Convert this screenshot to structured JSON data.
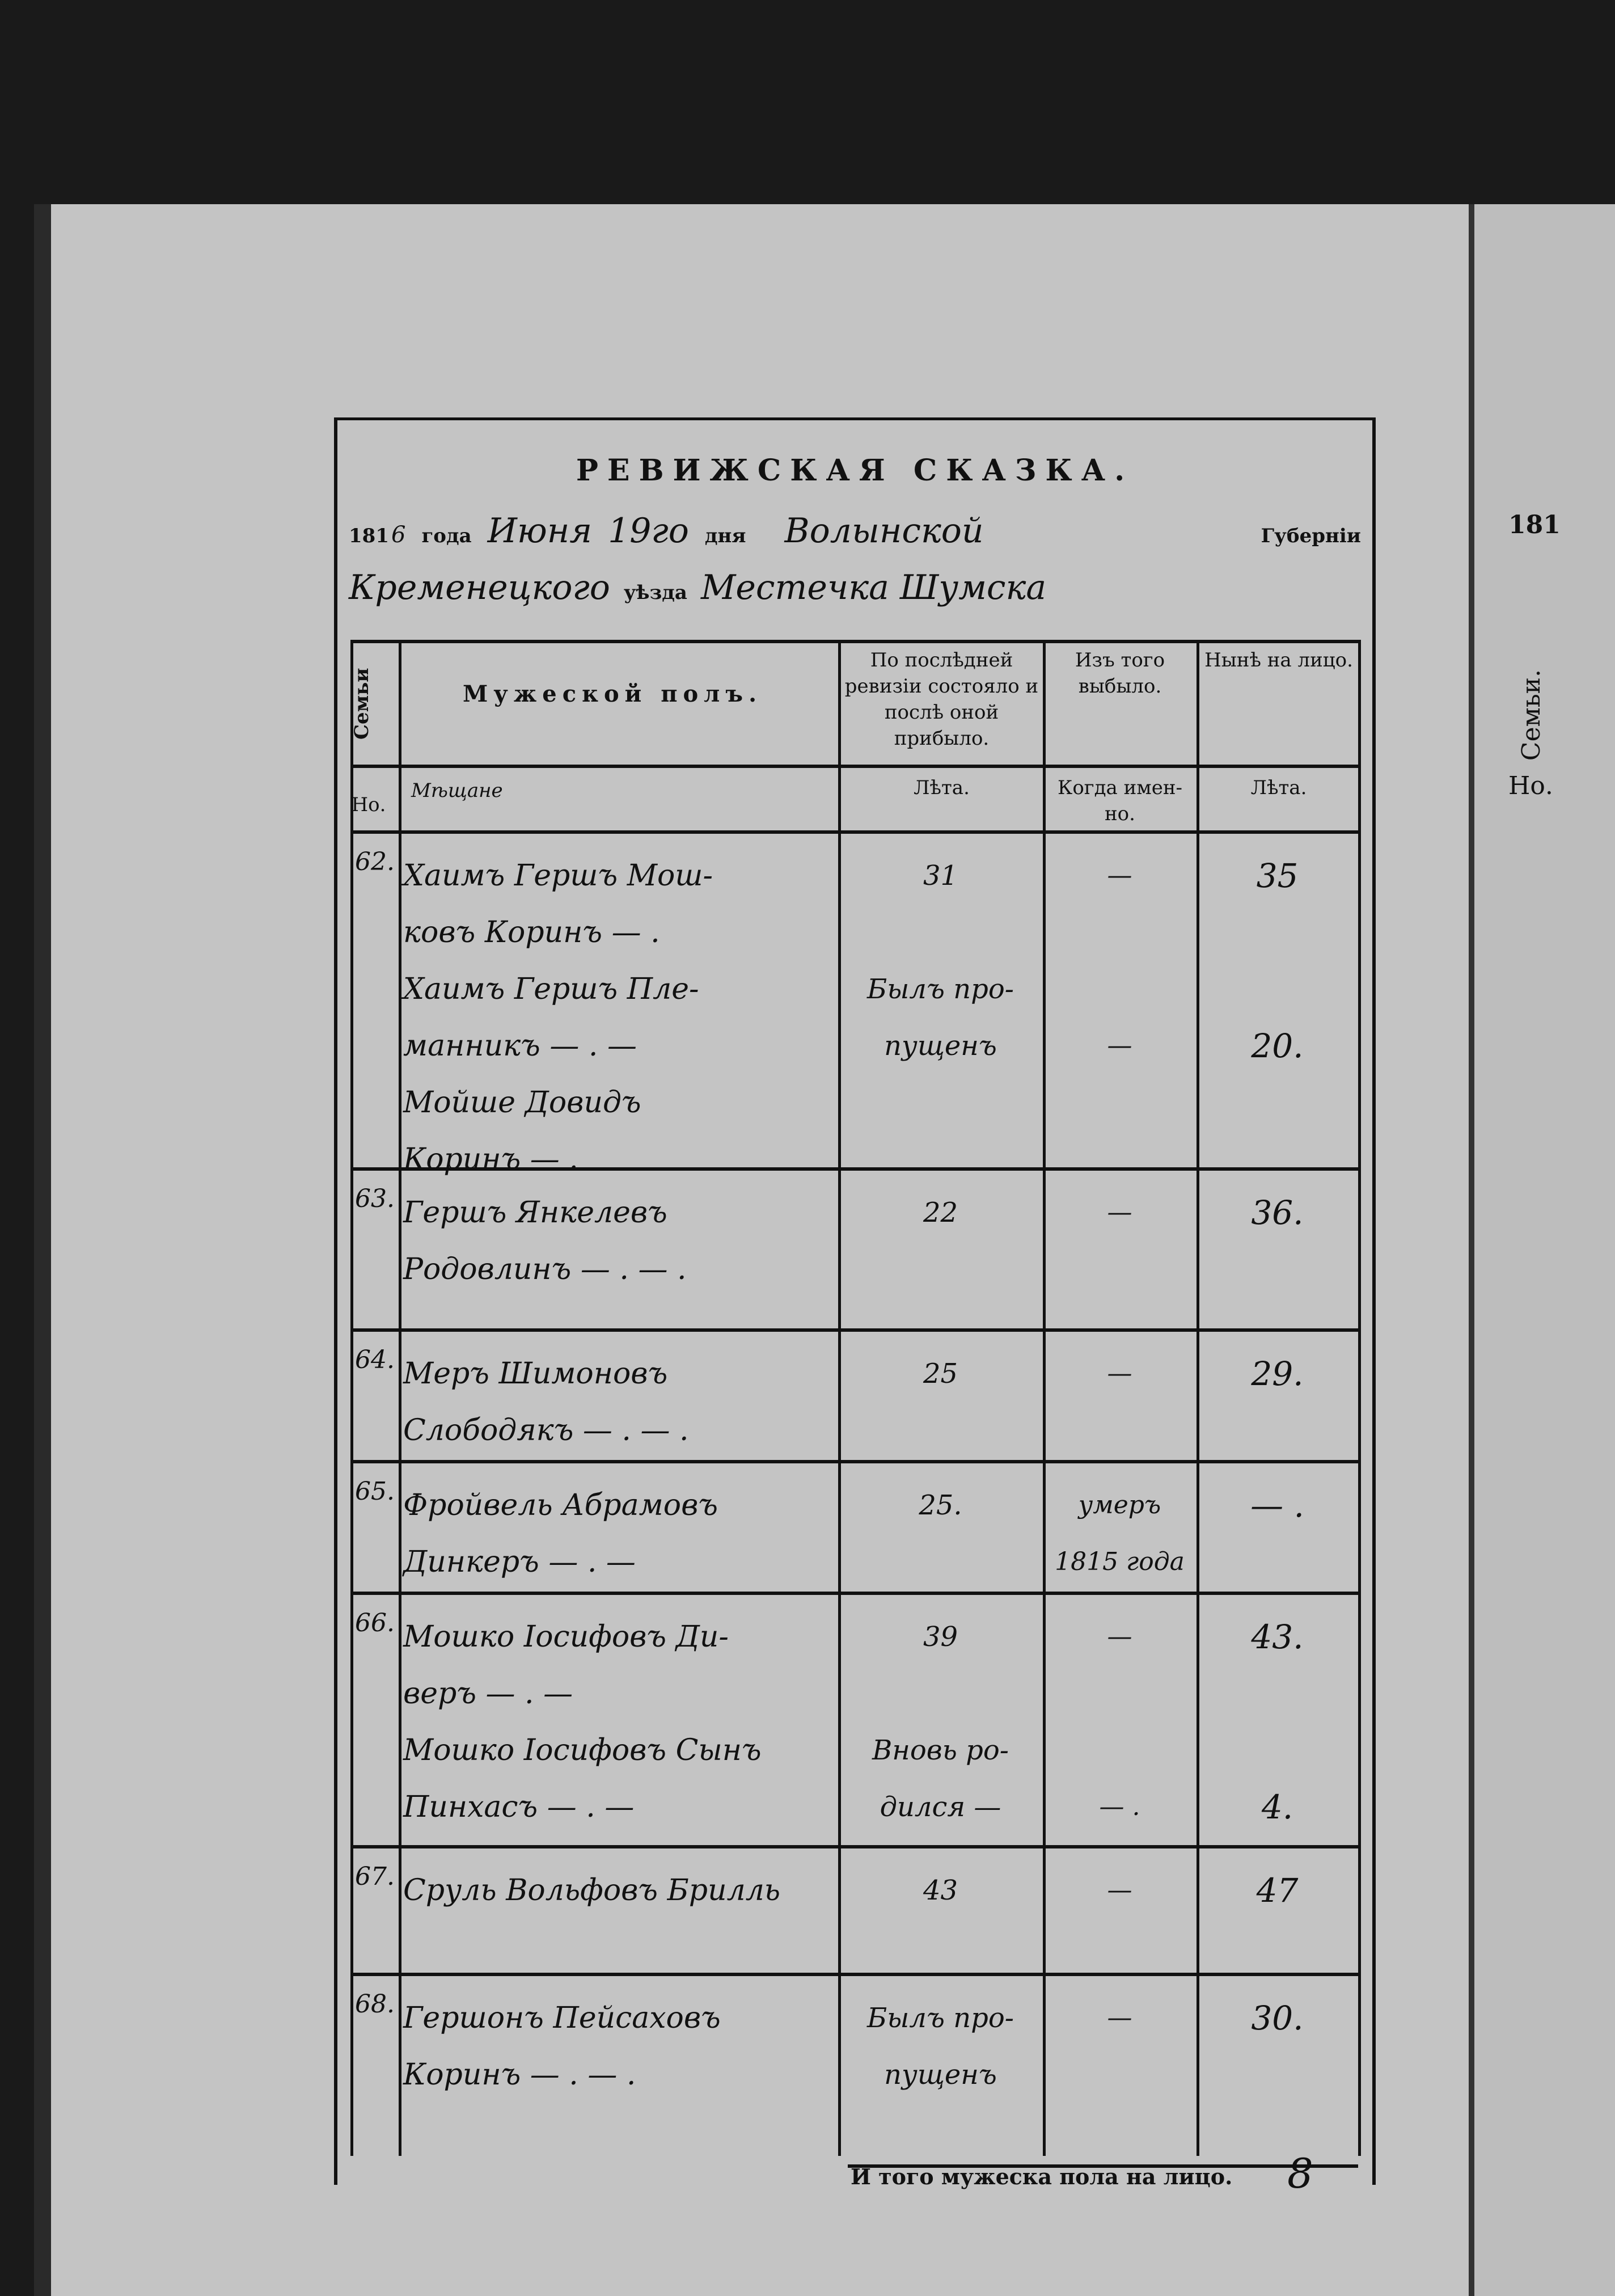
{
  "form": {
    "title": "РЕВИЖСКАЯ СКАЗКА.",
    "year_prefix": "181",
    "year_hand": "6",
    "year_label": "года",
    "month_hand": "Июня",
    "day_hand": "19го",
    "day_label": "дня",
    "province_hand": "Волынской",
    "province_label": "Губерніи",
    "district_hand": "Кременецкого",
    "district_label": "уѣзда",
    "town_hand": "Местечка Шумска"
  },
  "table": {
    "headers": {
      "family": "Семьи",
      "male": "Мужеской полъ.",
      "last_revision": "По послѣдней ревизіи состояло и послѣ оной прибыло.",
      "departed": "Изъ того выбыло.",
      "present": "Нынѣ на лицо."
    },
    "subheaders": {
      "number": "Но.",
      "male_hand": "Мѣщане",
      "last_revision": "Лѣта.",
      "departed": "Когда имен- но.",
      "present": "Лѣта."
    },
    "rows": [
      {
        "no": "62.",
        "name": "Хаимъ Гершъ Мош-\nковъ Коринъ — .\nХаимъ Гершъ Пле-\nманникъ — . —\nМойше Довидъ\n          Коринъ — .",
        "last": "31\n\nБылъ про-\nпущенъ",
        "departed": "—\n\n\n—",
        "present": "35\n\n\n20."
      },
      {
        "no": "63.",
        "name": "Гершъ Янкелевъ\nРодовлинъ — . — .",
        "last": "22",
        "departed": "—",
        "present": "36."
      },
      {
        "no": "64.",
        "name": "Меръ Шимоновъ\nСлободякъ — . — .",
        "last": "25",
        "departed": "—",
        "present": "29."
      },
      {
        "no": "65.",
        "name": "Фройвель Абрамовъ\nДинкеръ — . —",
        "last": "25.",
        "departed": "умеръ\n1815 года",
        "present": "— ."
      },
      {
        "no": "66.",
        "name": "Мошко Іосифовъ Ди-\nверъ — . —\nМошко Іосифовъ Сынъ\nПинхасъ — . —",
        "last": "39\n\nВновь ро-\nдился —",
        "departed": "—\n\n\n— .",
        "present": "43.\n\n\n4."
      },
      {
        "no": "67.",
        "name": "Сруль Вольфовъ Брилль",
        "last": "43",
        "departed": "—",
        "present": "47"
      },
      {
        "no": "68.",
        "name": "Гершонъ Пейсаховъ\nКоринъ — . — .",
        "last": "Былъ про-\nпущенъ",
        "departed": "—",
        "present": "30."
      }
    ],
    "footer_label": "И того мужеска пола на лицо.",
    "footer_total": "8"
  },
  "next_page": {
    "year_fragment": "181",
    "family_fragment": "Семьи.",
    "number_fragment": "Но."
  }
}
